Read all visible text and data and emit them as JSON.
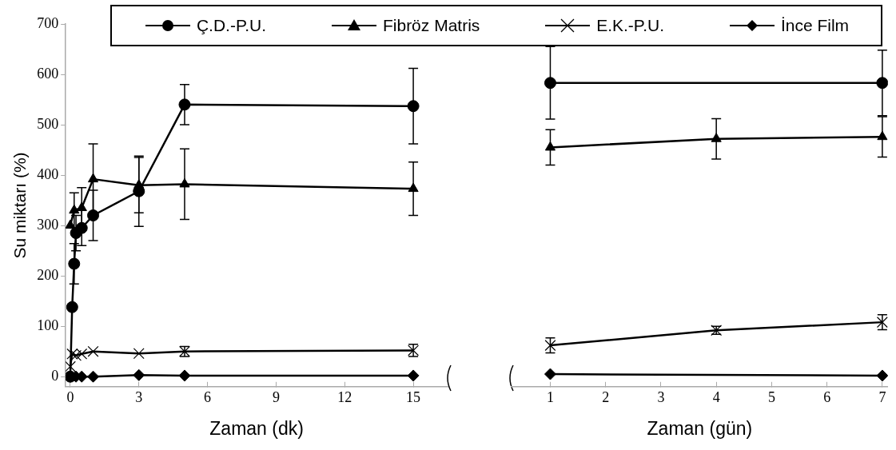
{
  "chart_data": [
    {
      "type": "line",
      "xlabel": "Zaman (dk)",
      "ylabel": "Su miktarı (%)",
      "xlim": [
        -0.2,
        16.5
      ],
      "xticks": [
        0,
        3,
        6,
        9,
        12,
        15
      ],
      "ylim": [
        -20,
        700
      ],
      "yticks": [
        0,
        100,
        200,
        300,
        400,
        500,
        600,
        700
      ],
      "grid": false,
      "legend": "top",
      "series": [
        {
          "name": "Ç.D.-P.U.",
          "color": "#000000",
          "marker": "circle",
          "x": [
            0,
            0.083,
            0.17,
            0.25,
            0.5,
            1,
            3,
            5,
            15
          ],
          "values": [
            0,
            138,
            224,
            285,
            295,
            320,
            368,
            540,
            537
          ],
          "errors": [
            null,
            null,
            40,
            35,
            35,
            50,
            70,
            40,
            75
          ]
        },
        {
          "name": "Fibröz Matris",
          "color": "#000000",
          "marker": "triangle",
          "x": [
            0,
            0.17,
            0.5,
            1,
            3,
            5,
            15
          ],
          "values": [
            300,
            330,
            335,
            392,
            380,
            382,
            373
          ],
          "errors": [
            null,
            35,
            40,
            70,
            55,
            70,
            53
          ]
        },
        {
          "name": "E.K.-P.U.",
          "color": "#000000",
          "marker": "cross",
          "x": [
            0,
            0.083,
            0.25,
            0.5,
            1,
            3,
            5,
            15
          ],
          "values": [
            20,
            45,
            42,
            45,
            50,
            46,
            50,
            52
          ],
          "errors": [
            null,
            null,
            null,
            null,
            null,
            null,
            10,
            12
          ]
        },
        {
          "name": "İnce Film",
          "color": "#000000",
          "marker": "diamond",
          "x": [
            0,
            0.25,
            0.5,
            1,
            3,
            5,
            15
          ],
          "values": [
            0,
            0,
            0,
            0,
            3,
            2,
            2
          ]
        }
      ]
    },
    {
      "type": "line",
      "xlabel": "Zaman (gün)",
      "xlim": [
        0.3,
        7.1
      ],
      "xticks": [
        1,
        2,
        3,
        4,
        5,
        6,
        7
      ],
      "ylim": [
        -20,
        700
      ],
      "yticks": [
        0,
        100,
        200,
        300,
        400,
        500,
        600,
        700
      ],
      "grid": false,
      "tick_labels": "x",
      "series": [
        {
          "color": "#000000",
          "marker": "circle",
          "x": [
            1,
            7
          ],
          "values": [
            583,
            583
          ],
          "errors": [
            72,
            65
          ]
        },
        {
          "color": "#000000",
          "marker": "triangle",
          "x": [
            1,
            4,
            7
          ],
          "values": [
            455,
            472,
            476
          ],
          "errors": [
            35,
            40,
            40
          ]
        },
        {
          "color": "#000000",
          "marker": "cross",
          "x": [
            1,
            4,
            7
          ],
          "values": [
            62,
            92,
            108
          ],
          "errors": [
            15,
            8,
            15
          ]
        },
        {
          "color": "#000000",
          "marker": "diamond",
          "x": [
            1,
            7
          ],
          "values": [
            5,
            2
          ]
        }
      ]
    }
  ]
}
